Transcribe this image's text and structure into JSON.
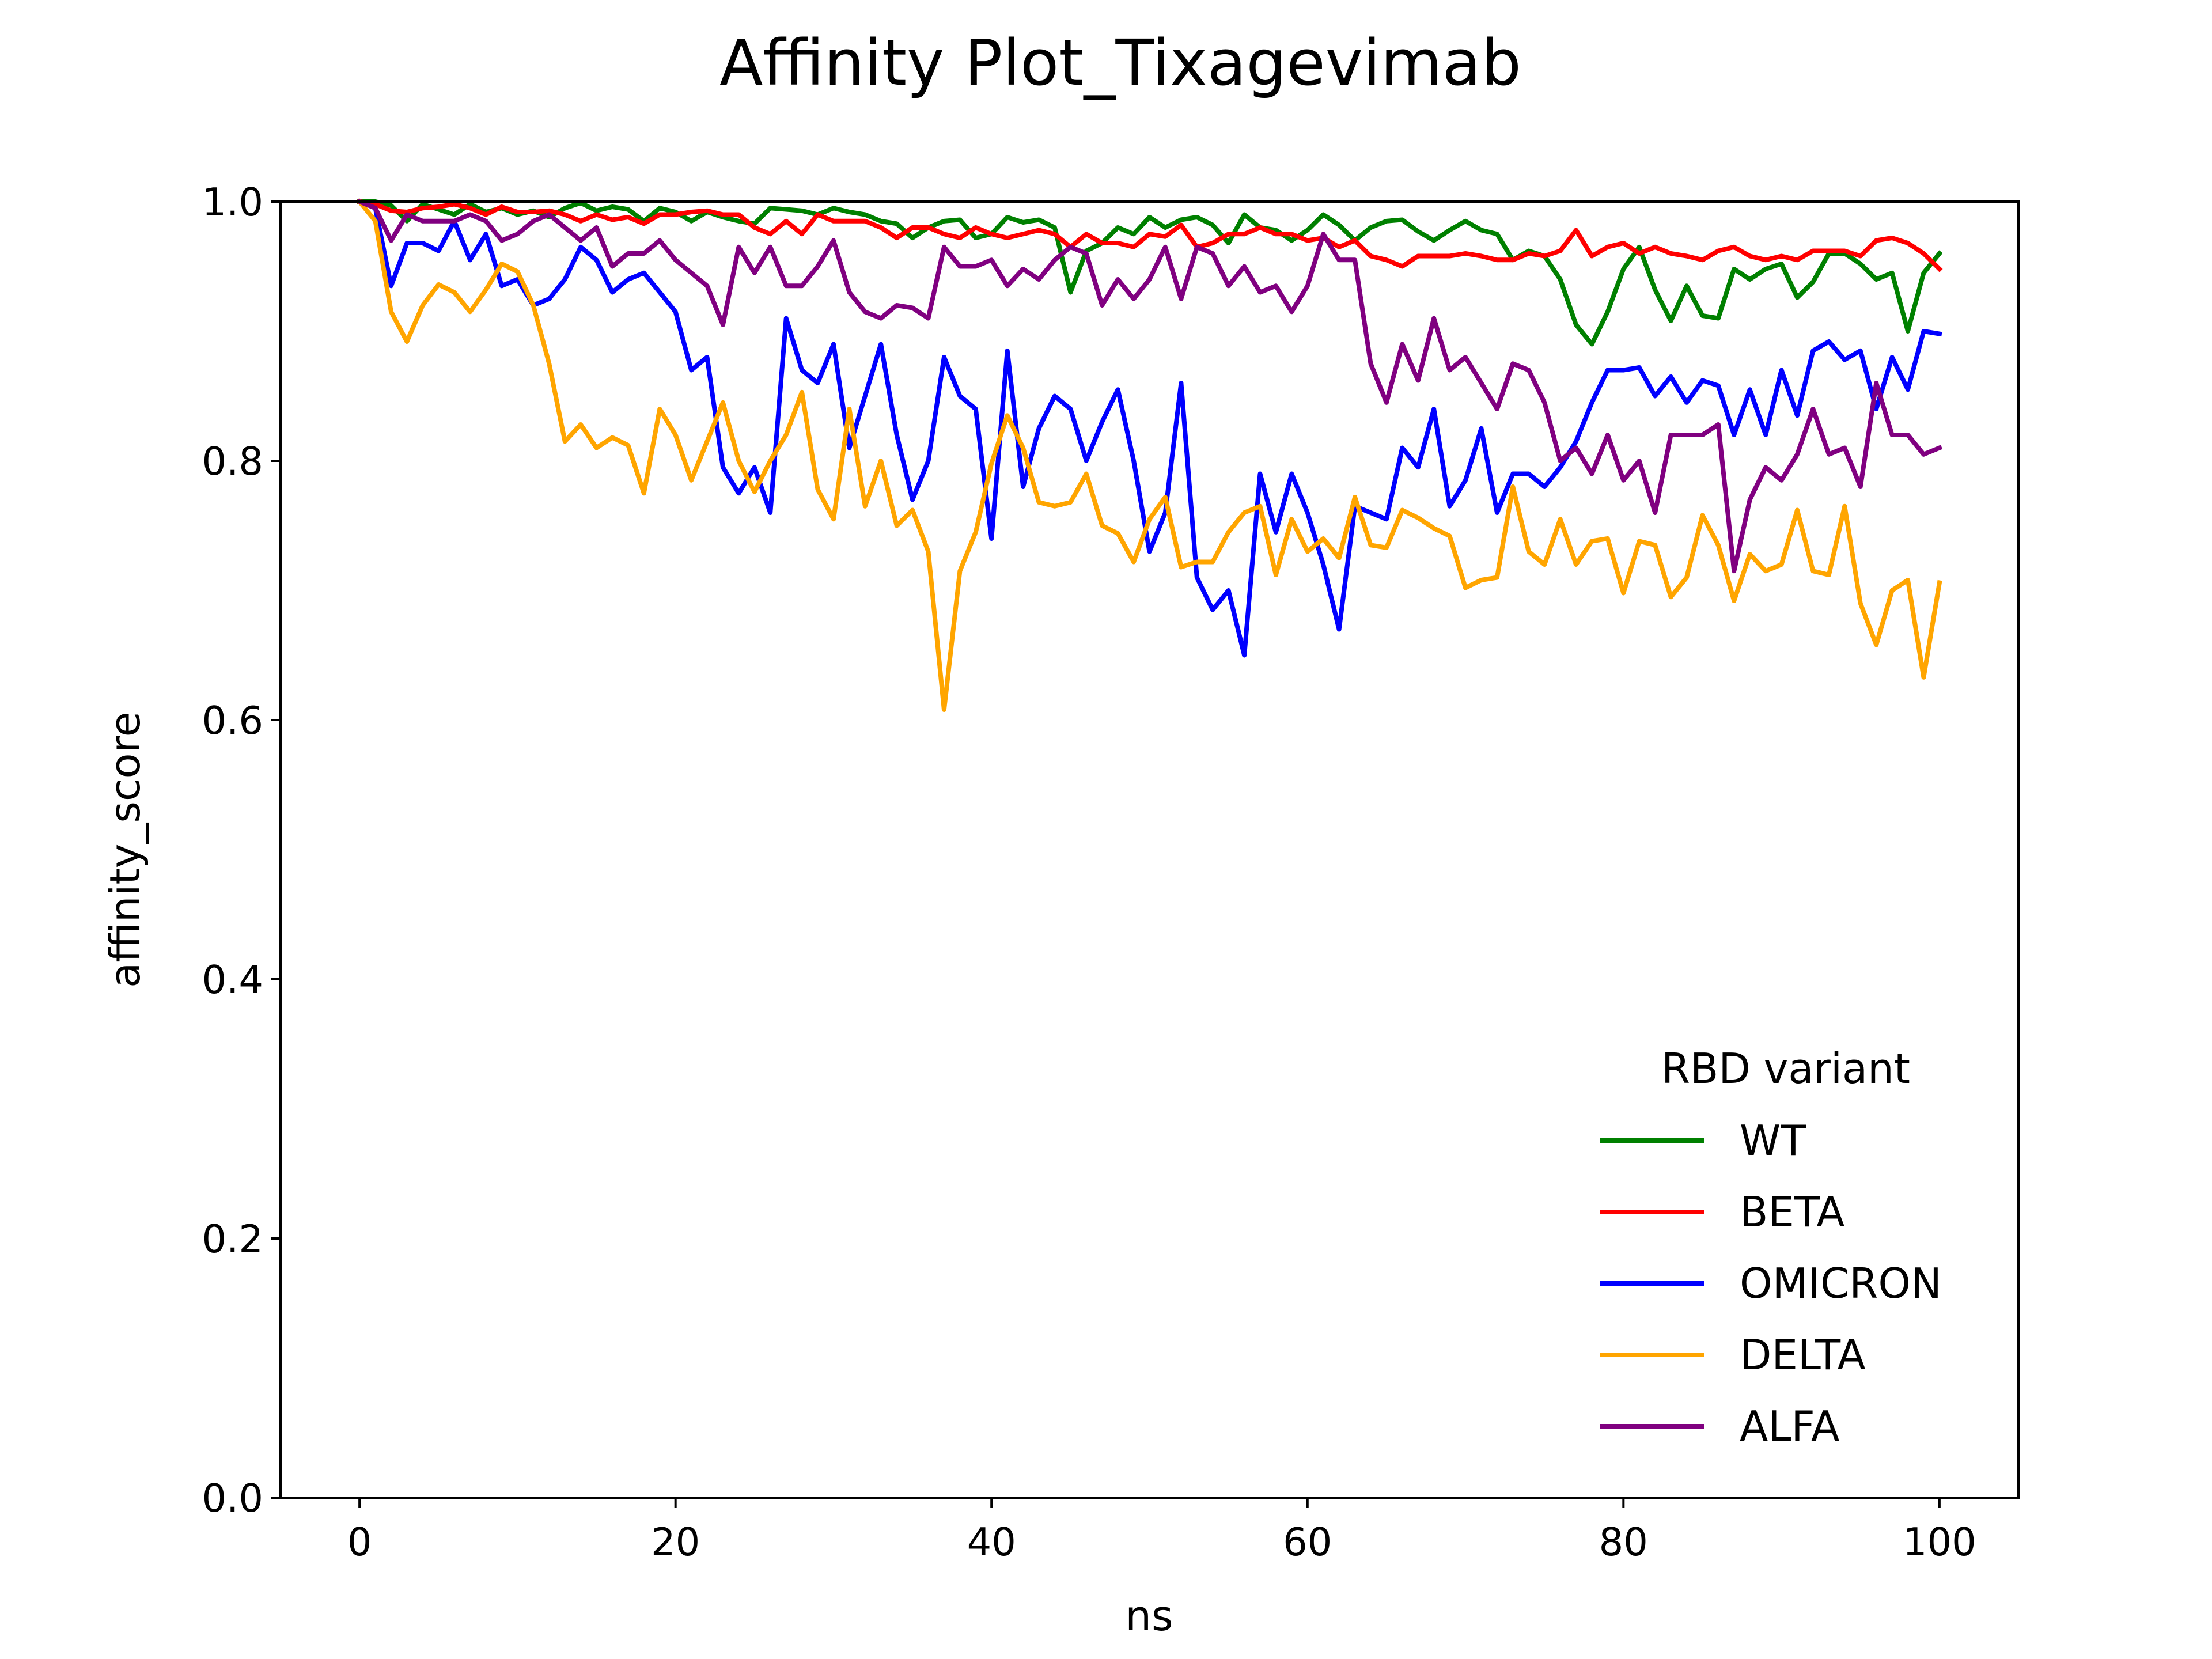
{
  "chart_data": {
    "type": "line",
    "title": "Affinity Plot_Tixagevimab",
    "xlabel": "ns",
    "ylabel": "affinity_score",
    "xlim": [
      -5,
      105
    ],
    "ylim": [
      0.0,
      1.0
    ],
    "xticks": [
      0,
      20,
      40,
      60,
      80,
      100
    ],
    "xtick_labels": [
      "0",
      "20",
      "40",
      "60",
      "80",
      "100"
    ],
    "yticks": [
      0.0,
      0.2,
      0.4,
      0.6,
      0.8,
      1.0
    ],
    "ytick_labels": [
      "0.0",
      "0.2",
      "0.4",
      "0.6",
      "0.8",
      "1.0"
    ],
    "grid": false,
    "legend": {
      "title": "RBD variant",
      "placement": "lower-right"
    },
    "x": [
      0,
      1,
      2,
      3,
      4,
      5,
      6,
      7,
      8,
      9,
      10,
      11,
      12,
      13,
      14,
      15,
      16,
      17,
      18,
      19,
      20,
      21,
      22,
      23,
      24,
      25,
      26,
      27,
      28,
      29,
      30,
      31,
      32,
      33,
      34,
      35,
      36,
      37,
      38,
      39,
      40,
      41,
      42,
      43,
      44,
      45,
      46,
      47,
      48,
      49,
      50,
      51,
      52,
      53,
      54,
      55,
      56,
      57,
      58,
      59,
      60,
      61,
      62,
      63,
      64,
      65,
      66,
      67,
      68,
      69,
      70,
      71,
      72,
      73,
      74,
      75,
      76,
      77,
      78,
      79,
      80,
      81,
      82,
      83,
      84,
      85,
      86,
      87,
      88,
      89,
      90,
      91,
      92,
      93,
      94,
      95,
      96,
      97,
      98,
      99,
      100
    ],
    "series": [
      {
        "name": "WT",
        "color": "#008000",
        "values": [
          1.0,
          1.0,
          0.997,
          0.985,
          0.998,
          0.994,
          0.99,
          0.998,
          0.992,
          0.995,
          0.99,
          0.993,
          0.988,
          0.995,
          0.999,
          0.993,
          0.996,
          0.994,
          0.985,
          0.995,
          0.992,
          0.985,
          0.992,
          0.988,
          0.985,
          0.983,
          0.995,
          0.994,
          0.993,
          0.99,
          0.995,
          0.992,
          0.99,
          0.985,
          0.983,
          0.972,
          0.98,
          0.985,
          0.986,
          0.972,
          0.975,
          0.988,
          0.984,
          0.986,
          0.98,
          0.93,
          0.962,
          0.968,
          0.98,
          0.975,
          0.988,
          0.98,
          0.986,
          0.988,
          0.982,
          0.968,
          0.99,
          0.98,
          0.978,
          0.97,
          0.978,
          0.99,
          0.982,
          0.97,
          0.98,
          0.985,
          0.986,
          0.977,
          0.97,
          0.978,
          0.985,
          0.978,
          0.975,
          0.955,
          0.962,
          0.958,
          0.94,
          0.905,
          0.89,
          0.915,
          0.948,
          0.965,
          0.932,
          0.908,
          0.935,
          0.912,
          0.91,
          0.948,
          0.94,
          0.948,
          0.952,
          0.926,
          0.938,
          0.96,
          0.96,
          0.952,
          0.94,
          0.945,
          0.9,
          0.945,
          0.96
        ]
      },
      {
        "name": "BETA",
        "color": "#ff0000",
        "values": [
          1.0,
          0.998,
          0.993,
          0.992,
          0.995,
          0.996,
          0.998,
          0.995,
          0.99,
          0.996,
          0.992,
          0.992,
          0.993,
          0.99,
          0.985,
          0.99,
          0.986,
          0.988,
          0.983,
          0.99,
          0.99,
          0.992,
          0.993,
          0.99,
          0.99,
          0.98,
          0.975,
          0.985,
          0.975,
          0.99,
          0.985,
          0.985,
          0.985,
          0.98,
          0.972,
          0.98,
          0.98,
          0.975,
          0.972,
          0.98,
          0.975,
          0.972,
          0.975,
          0.978,
          0.975,
          0.965,
          0.975,
          0.968,
          0.968,
          0.965,
          0.975,
          0.973,
          0.982,
          0.965,
          0.968,
          0.975,
          0.975,
          0.98,
          0.975,
          0.975,
          0.97,
          0.972,
          0.965,
          0.97,
          0.958,
          0.955,
          0.95,
          0.958,
          0.958,
          0.958,
          0.96,
          0.958,
          0.955,
          0.955,
          0.96,
          0.958,
          0.962,
          0.978,
          0.958,
          0.965,
          0.968,
          0.96,
          0.965,
          0.96,
          0.958,
          0.955,
          0.962,
          0.965,
          0.958,
          0.955,
          0.958,
          0.955,
          0.962,
          0.962,
          0.962,
          0.958,
          0.97,
          0.972,
          0.968,
          0.96,
          0.948
        ]
      },
      {
        "name": "OMICRON",
        "color": "#0000ff",
        "values": [
          1.0,
          0.995,
          0.935,
          0.968,
          0.968,
          0.962,
          0.985,
          0.955,
          0.975,
          0.935,
          0.94,
          0.92,
          0.925,
          0.94,
          0.965,
          0.955,
          0.93,
          0.94,
          0.945,
          0.93,
          0.915,
          0.87,
          0.88,
          0.795,
          0.775,
          0.795,
          0.76,
          0.91,
          0.87,
          0.86,
          0.89,
          0.81,
          0.85,
          0.89,
          0.82,
          0.77,
          0.8,
          0.88,
          0.85,
          0.84,
          0.74,
          0.885,
          0.78,
          0.825,
          0.85,
          0.84,
          0.8,
          0.83,
          0.855,
          0.8,
          0.73,
          0.76,
          0.86,
          0.71,
          0.685,
          0.7,
          0.65,
          0.79,
          0.745,
          0.79,
          0.76,
          0.72,
          0.67,
          0.765,
          0.76,
          0.755,
          0.81,
          0.795,
          0.84,
          0.765,
          0.785,
          0.825,
          0.76,
          0.79,
          0.79,
          0.78,
          0.795,
          0.815,
          0.845,
          0.87,
          0.87,
          0.872,
          0.85,
          0.865,
          0.845,
          0.862,
          0.858,
          0.82,
          0.855,
          0.82,
          0.87,
          0.835,
          0.885,
          0.892,
          0.878,
          0.885,
          0.84,
          0.88,
          0.855,
          0.9,
          0.898
        ]
      },
      {
        "name": "DELTA",
        "color": "#ffa500",
        "values": [
          1.0,
          0.985,
          0.915,
          0.892,
          0.92,
          0.936,
          0.93,
          0.915,
          0.932,
          0.952,
          0.946,
          0.92,
          0.875,
          0.815,
          0.828,
          0.81,
          0.818,
          0.812,
          0.775,
          0.84,
          0.82,
          0.785,
          0.815,
          0.845,
          0.8,
          0.776,
          0.8,
          0.82,
          0.853,
          0.778,
          0.755,
          0.84,
          0.765,
          0.8,
          0.75,
          0.762,
          0.73,
          0.608,
          0.715,
          0.745,
          0.798,
          0.835,
          0.81,
          0.768,
          0.765,
          0.768,
          0.79,
          0.75,
          0.744,
          0.722,
          0.755,
          0.772,
          0.718,
          0.722,
          0.722,
          0.745,
          0.76,
          0.765,
          0.712,
          0.755,
          0.73,
          0.74,
          0.725,
          0.772,
          0.735,
          0.733,
          0.762,
          0.756,
          0.748,
          0.742,
          0.702,
          0.708,
          0.71,
          0.78,
          0.73,
          0.72,
          0.755,
          0.72,
          0.738,
          0.74,
          0.698,
          0.738,
          0.735,
          0.695,
          0.71,
          0.758,
          0.735,
          0.692,
          0.728,
          0.715,
          0.72,
          0.762,
          0.715,
          0.712,
          0.765,
          0.69,
          0.658,
          0.7,
          0.708,
          0.633,
          0.706
        ]
      },
      {
        "name": "ALFA",
        "color": "#800080",
        "values": [
          1.0,
          0.995,
          0.97,
          0.99,
          0.985,
          0.985,
          0.985,
          0.99,
          0.985,
          0.97,
          0.975,
          0.985,
          0.99,
          0.98,
          0.97,
          0.98,
          0.95,
          0.96,
          0.96,
          0.97,
          0.955,
          0.945,
          0.935,
          0.905,
          0.965,
          0.945,
          0.965,
          0.935,
          0.935,
          0.95,
          0.97,
          0.93,
          0.915,
          0.91,
          0.92,
          0.918,
          0.91,
          0.965,
          0.95,
          0.95,
          0.955,
          0.935,
          0.948,
          0.94,
          0.955,
          0.965,
          0.96,
          0.92,
          0.94,
          0.925,
          0.94,
          0.965,
          0.925,
          0.965,
          0.96,
          0.935,
          0.95,
          0.93,
          0.935,
          0.915,
          0.935,
          0.975,
          0.955,
          0.955,
          0.875,
          0.845,
          0.89,
          0.862,
          0.91,
          0.87,
          0.88,
          0.86,
          0.84,
          0.875,
          0.87,
          0.845,
          0.8,
          0.81,
          0.79,
          0.82,
          0.785,
          0.8,
          0.76,
          0.82,
          0.82,
          0.82,
          0.828,
          0.715,
          0.77,
          0.795,
          0.785,
          0.805,
          0.84,
          0.805,
          0.81,
          0.78,
          0.86,
          0.82,
          0.82,
          0.805,
          0.81
        ]
      }
    ]
  }
}
